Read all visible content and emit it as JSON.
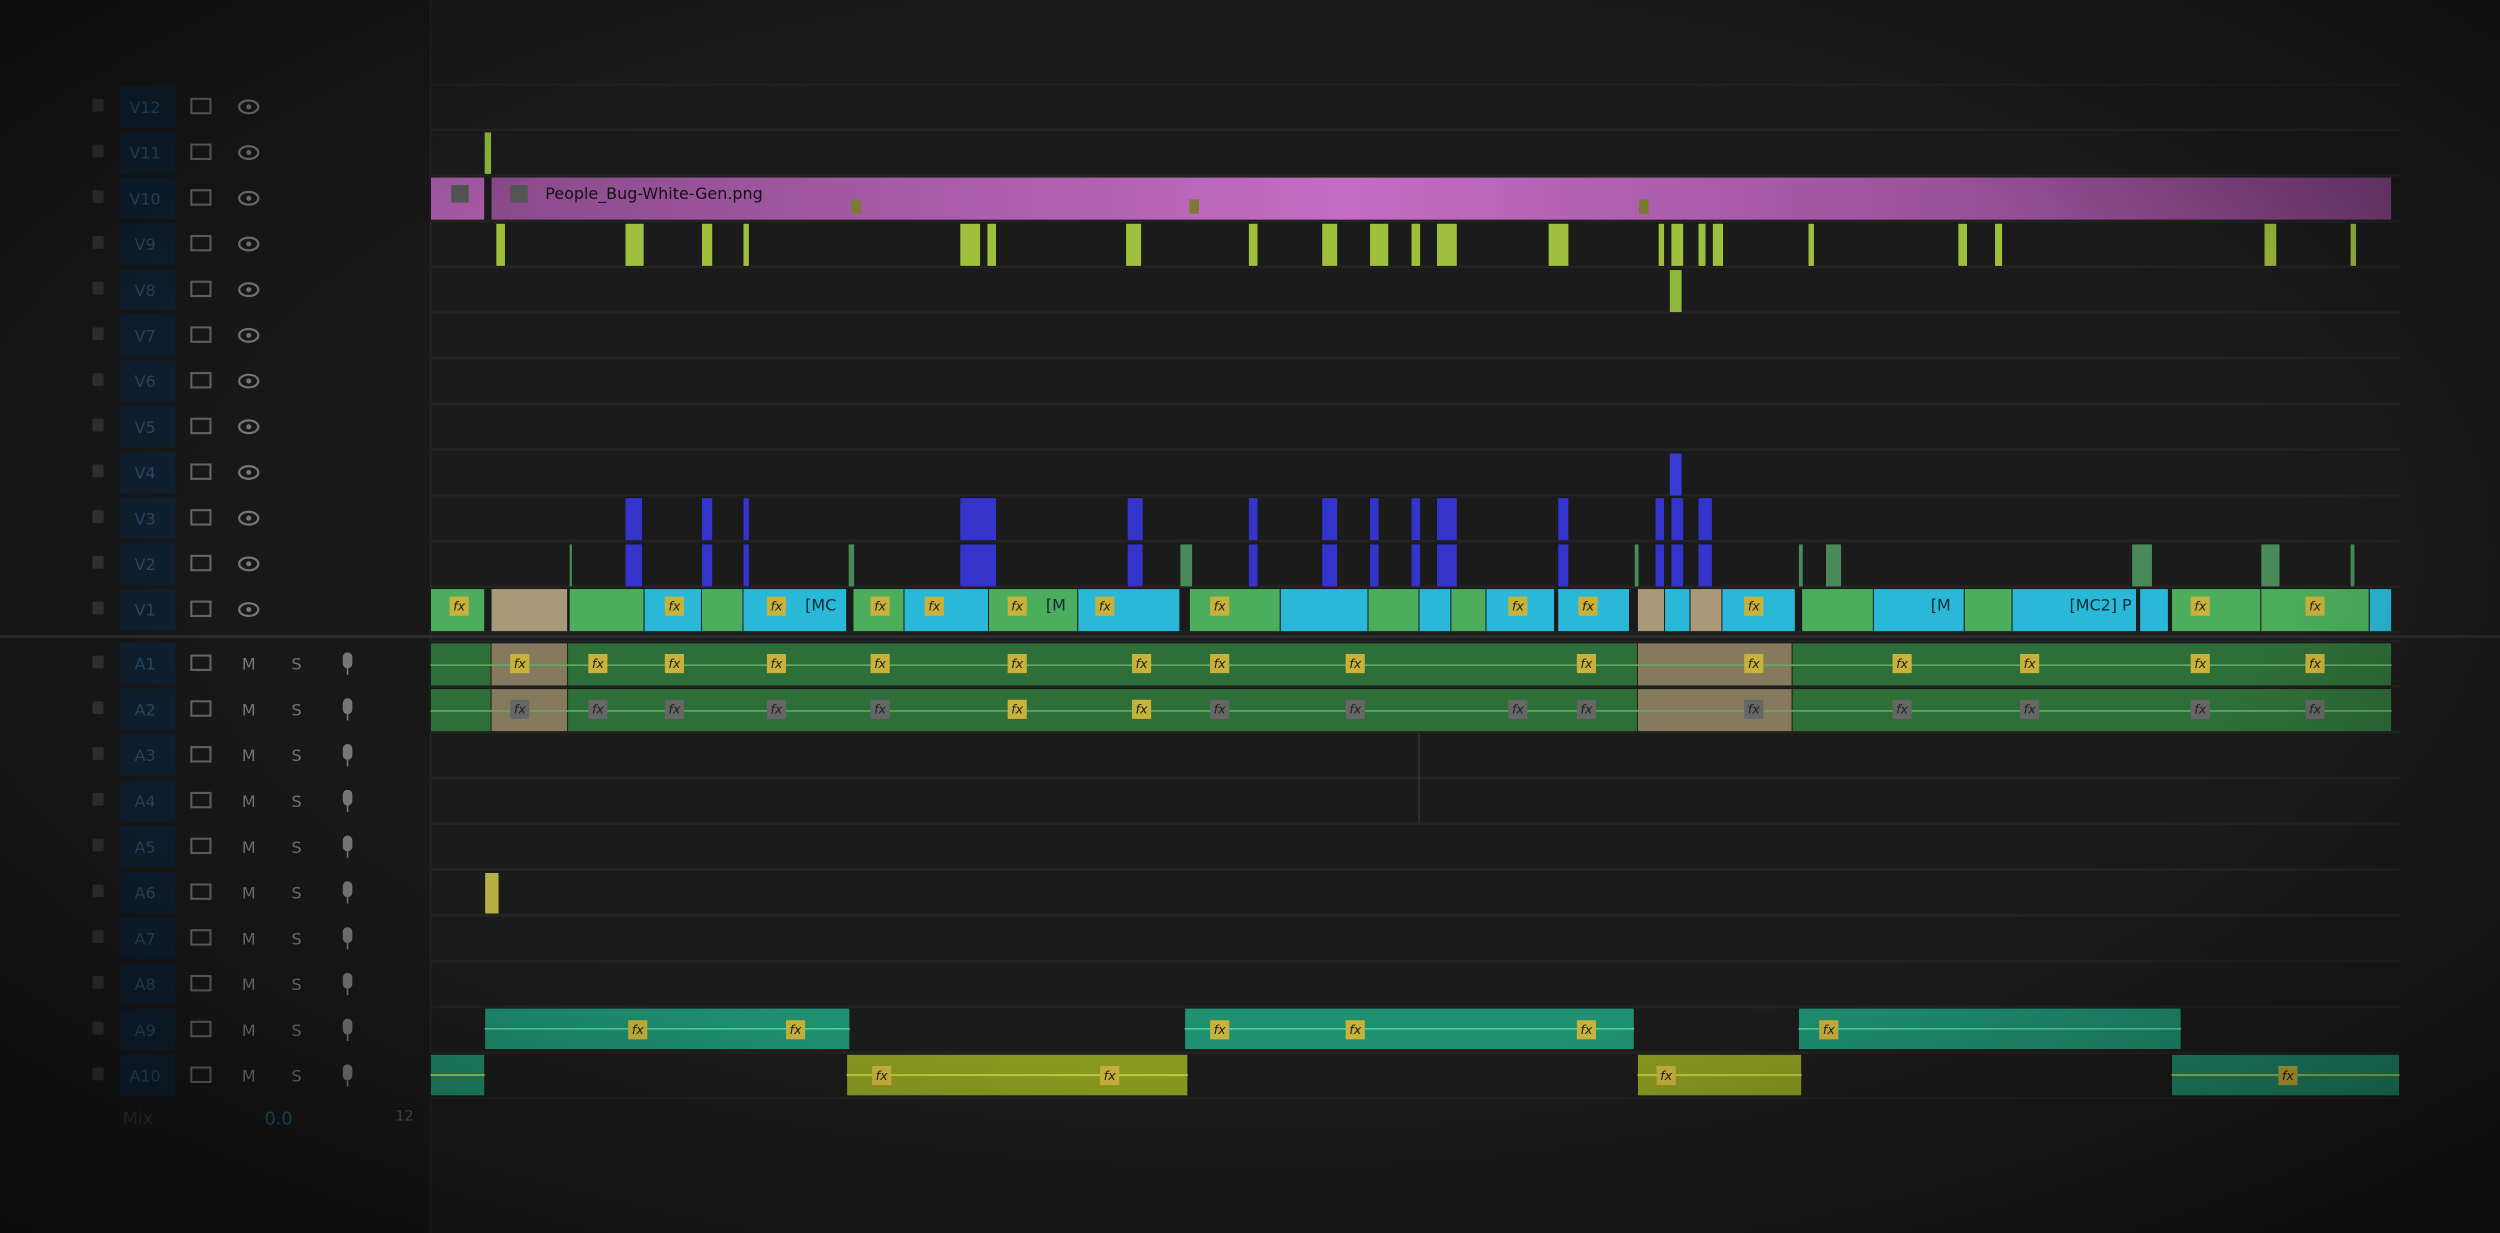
{
  "video_tracks": [
    "V12",
    "V11",
    "V10",
    "V9",
    "V8",
    "V7",
    "V6",
    "V5",
    "V4",
    "V3",
    "V2",
    "V1"
  ],
  "audio_tracks": [
    "A1",
    "A2",
    "A3",
    "A4",
    "A5",
    "A6",
    "A7",
    "A8",
    "A9",
    "A10"
  ],
  "mute_label": "M",
  "solo_label": "S",
  "mix": {
    "label": "Mix",
    "value": "0.0",
    "level": "12"
  },
  "clips": {
    "graphic": "People_Bug-White-Gen.png",
    "fx": "fx",
    "v1_labels": [
      "[MC",
      "[M",
      "[M",
      "[MC2] P"
    ]
  }
}
